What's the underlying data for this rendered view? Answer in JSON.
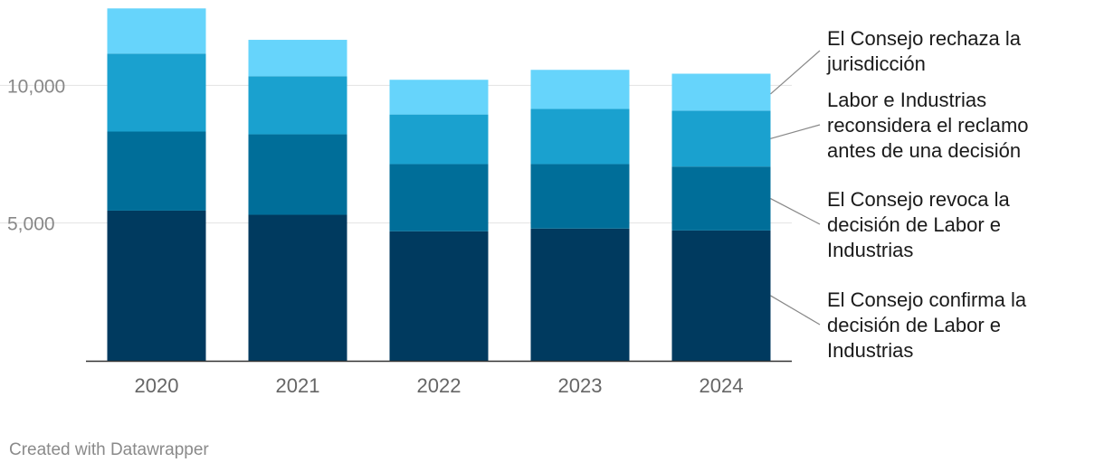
{
  "chart_data": {
    "type": "bar",
    "stacked": true,
    "categories": [
      "2020",
      "2021",
      "2022",
      "2023",
      "2024"
    ],
    "series": [
      {
        "name": "El Consejo confirma la decisión de Labor e Industrias",
        "color": "#003a5f",
        "values": [
          5450,
          5300,
          4700,
          4800,
          4730
        ]
      },
      {
        "name": "El Consejo revoca la decisión de Labor e Industrias",
        "color": "#006e99",
        "values": [
          2870,
          2920,
          2440,
          2340,
          2320
        ]
      },
      {
        "name": "Labor e Industrias reconsidera el reclamo antes de una decisión",
        "color": "#1aa1cf",
        "values": [
          2830,
          2110,
          1800,
          2000,
          2030
        ]
      },
      {
        "name": "El Consejo rechaza la jurisdicción",
        "color": "#66d4fb",
        "values": [
          1640,
          1320,
          1260,
          1420,
          1340
        ]
      }
    ],
    "ylim": [
      0,
      12800
    ],
    "yticks": [
      5000,
      10000
    ],
    "ytick_labels": [
      "5,000",
      "10,000"
    ],
    "grid": true,
    "legend_position": "right"
  },
  "footer": "Created with Datawrapper"
}
